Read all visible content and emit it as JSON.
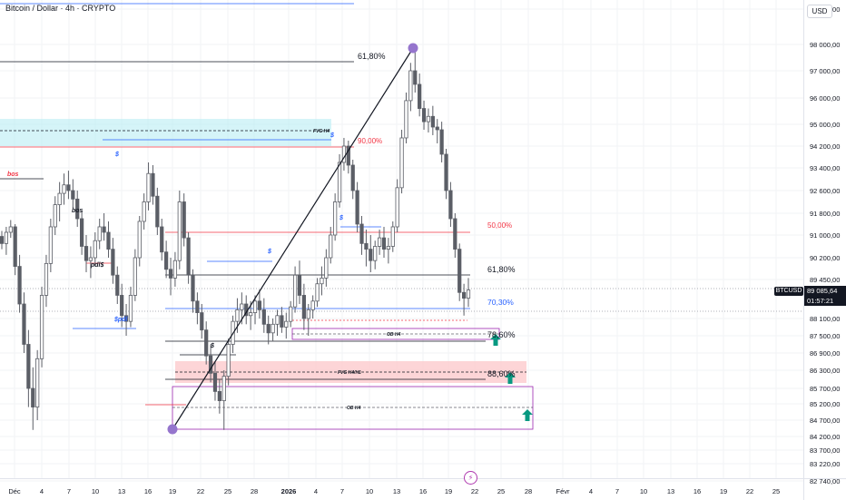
{
  "header": {
    "title": "Bitcoin / Dollar · 4h · CRYPTO",
    "currency": "USD"
  },
  "last_price": {
    "symbol": "BTCUSD",
    "value": "89 085,64",
    "countdown": "01:57:21"
  },
  "colors": {
    "candle": "#5b5e66",
    "fib": "#131722",
    "fib_red": "#f23645",
    "fib_blue": "#2962ff",
    "fvg_fill": "#b2ebf2",
    "fvg_red_fill": "#fccbcd",
    "ob_purple": "#9c27b0",
    "arrow_green": "#089981",
    "point_purple": "#9575cd"
  },
  "chart_data": {
    "type": "candlestick",
    "x_ticks": [
      "Déc",
      "4",
      "7",
      "10",
      "13",
      "16",
      "19",
      "22",
      "25",
      "28",
      "2026",
      "4",
      "7",
      "10",
      "13",
      "16",
      "19",
      "22",
      "25",
      "28",
      "Févr",
      "4",
      "7",
      "10",
      "13",
      "16",
      "19",
      "22",
      "25"
    ],
    "y_ticks": [
      "99 000,00",
      "98 000,00",
      "97 000,00",
      "96 000,00",
      "95 000,00",
      "94 200,00",
      "93 400,00",
      "92 600,00",
      "91 800,00",
      "91 000,00",
      "90 200,00",
      "89 450,00",
      "88 100,00",
      "87 500,00",
      "86 900,00",
      "86 300,00",
      "85 700,00",
      "85 200,00",
      "84 700,00",
      "84 200,00",
      "83 700,00",
      "83 220,00",
      "82 740,00"
    ],
    "y_scale": "log",
    "fib_levels": [
      {
        "label": "61,80%",
        "color": "#131722"
      },
      {
        "label": "50,00%",
        "color": "#f23645"
      },
      {
        "label": "90,00%",
        "color": "#f23645"
      },
      {
        "label": "61,80%",
        "color": "#131722"
      },
      {
        "label": "70,30%",
        "color": "#2962ff"
      },
      {
        "label": "78,60%",
        "color": "#131722"
      },
      {
        "label": "88,60%",
        "color": "#131722"
      }
    ],
    "zones": [
      {
        "label": "FVG H4",
        "type": "fvg"
      },
      {
        "label": "OB H4",
        "type": "ob"
      },
      {
        "label": "FVG H4/H1",
        "type": "fvg"
      },
      {
        "label": "OB H4",
        "type": "ob"
      }
    ],
    "annotations": [
      "bos",
      "$",
      "$",
      "bos",
      "pdl$",
      "$pdl",
      "$",
      "$",
      "$"
    ],
    "series": [
      {
        "values": [
          [
            90950,
            91150,
            90500,
            90700
          ],
          [
            90700,
            91300,
            90300,
            91100
          ],
          [
            91100,
            91550,
            90900,
            91300
          ],
          [
            91300,
            91400,
            89600,
            89900
          ],
          [
            89900,
            90300,
            88300,
            88600
          ],
          [
            88600,
            89000,
            86900,
            87200
          ],
          [
            87200,
            87700,
            85100,
            85700
          ],
          [
            85700,
            86400,
            84400,
            85100
          ],
          [
            85100,
            87000,
            84700,
            86700
          ],
          [
            86700,
            89200,
            86400,
            88900
          ],
          [
            88900,
            90300,
            88500,
            90000
          ],
          [
            90000,
            91600,
            89700,
            91300
          ],
          [
            91300,
            92400,
            91000,
            92100
          ],
          [
            92100,
            92900,
            91500,
            92500
          ],
          [
            92500,
            93200,
            92100,
            92800
          ],
          [
            92800,
            93300,
            92300,
            92600
          ],
          [
            92600,
            93000,
            92000,
            92300
          ],
          [
            92300,
            92600,
            91300,
            91600
          ],
          [
            91600,
            91900,
            90300,
            90600
          ],
          [
            90600,
            91000,
            89700,
            90100
          ],
          [
            90100,
            90600,
            89500,
            90200
          ],
          [
            90200,
            91100,
            89900,
            90800
          ],
          [
            90800,
            91600,
            90500,
            91300
          ],
          [
            91300,
            91800,
            90800,
            91100
          ],
          [
            91100,
            91500,
            90200,
            90500
          ],
          [
            90500,
            90900,
            89300,
            89600
          ],
          [
            89600,
            89900,
            88600,
            88900
          ],
          [
            88900,
            89300,
            87800,
            88200
          ],
          [
            88200,
            88600,
            87500,
            88000
          ],
          [
            88000,
            89200,
            87800,
            88900
          ],
          [
            88900,
            90500,
            88700,
            90200
          ],
          [
            90200,
            91700,
            89900,
            91500
          ],
          [
            91500,
            92500,
            91200,
            92200
          ],
          [
            92200,
            93600,
            91900,
            93200
          ],
          [
            93200,
            93500,
            92100,
            92400
          ],
          [
            92400,
            92700,
            91000,
            91300
          ],
          [
            91300,
            91600,
            90100,
            90400
          ],
          [
            90400,
            90800,
            89500,
            89800
          ],
          [
            89800,
            90200,
            88900,
            89500
          ],
          [
            89500,
            90400,
            89200,
            90100
          ],
          [
            90100,
            92600,
            89800,
            92200
          ],
          [
            92200,
            92500,
            90600,
            90900
          ],
          [
            90900,
            91100,
            89300,
            89600
          ],
          [
            89600,
            89800,
            88300,
            88700
          ],
          [
            88700,
            89000,
            87900,
            88300
          ],
          [
            88300,
            88600,
            87400,
            87700
          ],
          [
            87700,
            88000,
            86500,
            86800
          ],
          [
            86800,
            87200,
            85900,
            86200
          ],
          [
            86200,
            86600,
            85300,
            85600
          ],
          [
            85600,
            86000,
            84900,
            85300
          ],
          [
            85300,
            86300,
            84400,
            86100
          ],
          [
            86100,
            87400,
            85800,
            87200
          ],
          [
            87200,
            88200,
            86900,
            88000
          ],
          [
            88000,
            88800,
            87600,
            88400
          ],
          [
            88400,
            89000,
            87900,
            88600
          ],
          [
            88600,
            88900,
            87900,
            88200
          ],
          [
            88200,
            88700,
            87700,
            88300
          ],
          [
            88300,
            88900,
            87900,
            88700
          ],
          [
            88700,
            89100,
            88100,
            88400
          ],
          [
            88400,
            88800,
            87600,
            87900
          ],
          [
            87900,
            88200,
            87200,
            87600
          ],
          [
            87600,
            88100,
            87300,
            87900
          ],
          [
            87900,
            88400,
            87500,
            88200
          ],
          [
            88200,
            88500,
            87600,
            87800
          ],
          [
            87800,
            88300,
            87400,
            88000
          ],
          [
            88000,
            88700,
            87800,
            88500
          ],
          [
            88500,
            89900,
            88300,
            89600
          ],
          [
            89600,
            90100,
            88600,
            88900
          ],
          [
            88900,
            89300,
            87700,
            88100
          ],
          [
            88100,
            88600,
            87500,
            88400
          ],
          [
            88400,
            88900,
            88100,
            88700
          ],
          [
            88700,
            89500,
            88500,
            89300
          ],
          [
            89300,
            89900,
            88900,
            89500
          ],
          [
            89500,
            90500,
            89200,
            90200
          ],
          [
            90200,
            91300,
            90000,
            91000
          ],
          [
            91000,
            92500,
            90800,
            92200
          ],
          [
            92200,
            93900,
            92000,
            93600
          ],
          [
            93600,
            94500,
            93300,
            94200
          ],
          [
            94200,
            94400,
            93200,
            93500
          ],
          [
            93500,
            93700,
            92300,
            92600
          ],
          [
            92600,
            92900,
            91100,
            91400
          ],
          [
            91400,
            91700,
            90300,
            90700
          ],
          [
            90700,
            91200,
            89900,
            90500
          ],
          [
            90500,
            91000,
            89700,
            90100
          ],
          [
            90100,
            90800,
            89800,
            90600
          ],
          [
            90600,
            91200,
            90300,
            90900
          ],
          [
            90900,
            91300,
            90200,
            90500
          ],
          [
            90500,
            90900,
            90000,
            90600
          ],
          [
            90600,
            91500,
            90400,
            91300
          ],
          [
            91300,
            93000,
            91100,
            92700
          ],
          [
            92700,
            94800,
            92500,
            94500
          ],
          [
            94500,
            96200,
            94300,
            95900
          ],
          [
            95900,
            97300,
            95500,
            97000
          ],
          [
            97000,
            97800,
            96200,
            96500
          ],
          [
            96500,
            96900,
            95300,
            95600
          ],
          [
            95600,
            95900,
            94800,
            95100
          ],
          [
            95100,
            95600,
            94700,
            95300
          ],
          [
            95300,
            95700,
            94600,
            94900
          ],
          [
            94900,
            95200,
            94300,
            94800
          ],
          [
            94800,
            95100,
            93600,
            93900
          ],
          [
            93900,
            94100,
            92300,
            92600
          ],
          [
            92600,
            92900,
            91300,
            91600
          ],
          [
            91600,
            91800,
            90200,
            90500
          ],
          [
            90500,
            90700,
            88700,
            89000
          ],
          [
            89000,
            89300,
            88200,
            88800
          ],
          [
            88800,
            89500,
            88500,
            89085
          ]
        ]
      }
    ]
  }
}
